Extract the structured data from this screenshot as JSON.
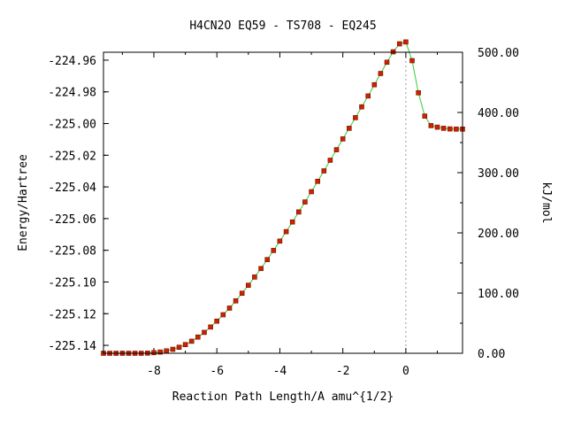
{
  "chart_data": {
    "type": "scatter",
    "title": "H4CN2O   EQ59 - TS708 - EQ245",
    "xlabel": "Reaction Path Length/A amu^{1/2}",
    "ylabel": "Energy/Hartree",
    "y2label": "kJ/mol",
    "xlim": [
      -9.6,
      1.8
    ],
    "ylim": [
      -225.145,
      -224.955
    ],
    "y2lim": [
      0,
      500
    ],
    "xticks": [
      -8,
      -6,
      -4,
      -2,
      0
    ],
    "xtick_labels": [
      "-8",
      "-6",
      "-4",
      "-2",
      "0"
    ],
    "yticks": [
      -224.96,
      -224.98,
      -225.0,
      -225.02,
      -225.04,
      -225.06,
      -225.08,
      -225.1,
      -225.12,
      -225.14
    ],
    "ytick_labels": [
      "-224.96",
      "-224.98",
      "-225.00",
      "-225.02",
      "-225.04",
      "-225.06",
      "-225.08",
      "-225.10",
      "-225.12",
      "-225.14"
    ],
    "y2ticks": [
      0,
      100,
      200,
      300,
      400,
      500
    ],
    "y2tick_labels": [
      "0.00",
      "100.00",
      "200.00",
      "300.00",
      "400.00",
      "500.00"
    ],
    "ts_marker_x": 0,
    "grid": false,
    "legend": "none",
    "colors": {
      "line": "#33cc33",
      "marker": "#cc2200",
      "ts_line": "#999999",
      "axis": "#000000"
    },
    "x": [
      -9.6,
      -9.4,
      -9.2,
      -9.0,
      -8.8,
      -8.6,
      -8.4,
      -8.2,
      -8.0,
      -7.8,
      -7.6,
      -7.4,
      -7.2,
      -7.0,
      -6.8,
      -6.6,
      -6.4,
      -6.2,
      -6.0,
      -5.8,
      -5.6,
      -5.4,
      -5.2,
      -5.0,
      -4.8,
      -4.6,
      -4.4,
      -4.2,
      -4.0,
      -3.8,
      -3.6,
      -3.4,
      -3.2,
      -3.0,
      -2.8,
      -2.6,
      -2.4,
      -2.2,
      -2.0,
      -1.8,
      -1.6,
      -1.4,
      -1.2,
      -1.0,
      -0.8,
      -0.6,
      -0.4,
      -0.2,
      0.0,
      0.2,
      0.4,
      0.6,
      0.8,
      1.0,
      1.2,
      1.4,
      1.6,
      1.8
    ],
    "y": [
      -225.145,
      -225.145,
      -225.145,
      -225.145,
      -225.145,
      -225.145,
      -225.145,
      -225.1449,
      -225.1446,
      -225.1442,
      -225.1435,
      -225.1425,
      -225.1412,
      -225.1395,
      -225.1374,
      -225.1348,
      -225.1318,
      -225.1284,
      -225.1247,
      -225.1207,
      -225.1165,
      -225.1119,
      -225.1071,
      -225.1021,
      -225.0969,
      -225.0915,
      -225.0859,
      -225.0801,
      -225.0742,
      -225.0682,
      -225.0621,
      -225.0558,
      -225.0495,
      -225.043,
      -225.0365,
      -225.0299,
      -225.0232,
      -225.0165,
      -225.0097,
      -225.003,
      -224.9963,
      -224.9895,
      -224.9826,
      -224.9755,
      -224.9684,
      -224.9613,
      -224.9547,
      -224.9497,
      -224.9485,
      -224.9603,
      -224.9806,
      -224.9953,
      -225.0013,
      -225.0023,
      -225.003,
      -225.0034,
      -225.0035,
      -225.0035
    ]
  }
}
